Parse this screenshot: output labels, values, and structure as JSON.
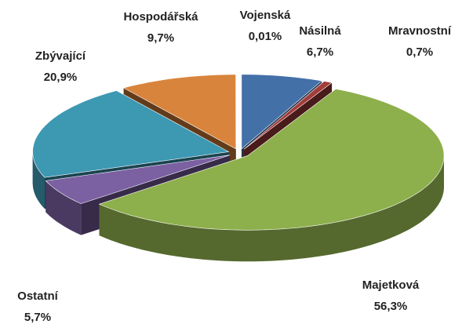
{
  "chart_data": {
    "type": "pie",
    "categories": [
      "Násilná",
      "Mravnostní",
      "Majetková",
      "Ostatní",
      "Zbývající",
      "Hospodářská",
      "Vojenská"
    ],
    "values": [
      6.7,
      0.7,
      56.3,
      5.7,
      20.9,
      9.7,
      0.01
    ],
    "value_labels": [
      "6,7%",
      "0,7%",
      "56,3%",
      "5,7%",
      "20,9%",
      "9,7%",
      "0,01%"
    ],
    "colors": [
      "#4470a8",
      "#a33c3a",
      "#8daf4c",
      "#7b60a2",
      "#3d98b2",
      "#d9843c",
      "#f4f6fa"
    ]
  }
}
